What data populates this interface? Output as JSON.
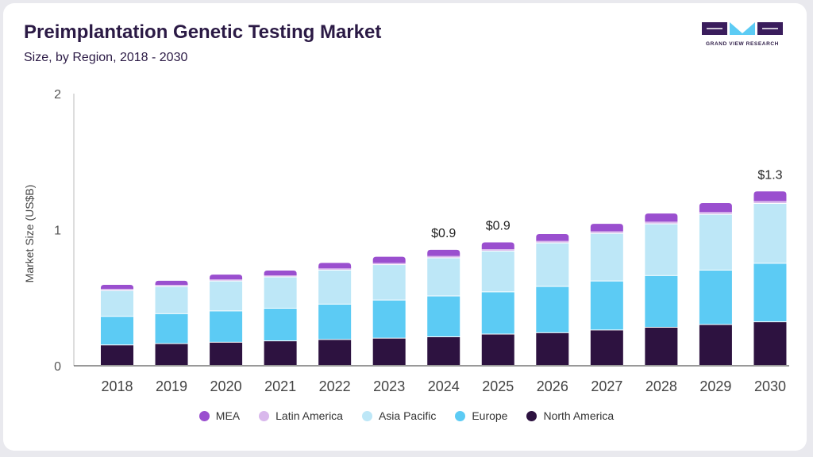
{
  "header": {
    "title": "Preimplantation Genetic Testing Market",
    "subtitle": "Size, by Region, 2018 - 2030"
  },
  "logo": {
    "text": "GRAND VIEW RESEARCH"
  },
  "chart_data": {
    "type": "bar",
    "stacked": true,
    "ylabel": "Market Size (US$B)",
    "xlabel": "",
    "ylim": [
      0,
      2
    ],
    "yticks": [
      "0",
      "1",
      "2"
    ],
    "categories": [
      "2018",
      "2019",
      "2020",
      "2021",
      "2022",
      "2023",
      "2024",
      "2025",
      "2026",
      "2027",
      "2028",
      "2029",
      "2030"
    ],
    "series": [
      {
        "name": "North America",
        "color": "#2d1240",
        "values": [
          0.15,
          0.16,
          0.17,
          0.18,
          0.19,
          0.2,
          0.21,
          0.23,
          0.24,
          0.26,
          0.28,
          0.3,
          0.32
        ]
      },
      {
        "name": "Europe",
        "color": "#5ccbf4",
        "values": [
          0.21,
          0.22,
          0.23,
          0.24,
          0.26,
          0.28,
          0.3,
          0.31,
          0.34,
          0.36,
          0.38,
          0.4,
          0.43
        ]
      },
      {
        "name": "Asia Pacific",
        "color": "#bde7f7",
        "values": [
          0.19,
          0.2,
          0.22,
          0.23,
          0.25,
          0.26,
          0.28,
          0.3,
          0.32,
          0.35,
          0.38,
          0.41,
          0.44
        ]
      },
      {
        "name": "Latin America",
        "color": "#d9b8ec",
        "values": [
          0.015,
          0.015,
          0.015,
          0.015,
          0.016,
          0.016,
          0.017,
          0.017,
          0.018,
          0.018,
          0.019,
          0.02,
          0.021
        ]
      },
      {
        "name": "MEA",
        "color": "#9a4fcf",
        "values": [
          0.03,
          0.03,
          0.035,
          0.035,
          0.04,
          0.045,
          0.045,
          0.05,
          0.05,
          0.055,
          0.06,
          0.065,
          0.07
        ]
      }
    ],
    "annotations": [
      {
        "category": "2024",
        "label": "$0.9"
      },
      {
        "category": "2025",
        "label": "$0.9"
      },
      {
        "category": "2030",
        "label": "$1.3"
      }
    ],
    "legend": {
      "position": "bottom",
      "order": [
        "MEA",
        "Latin America",
        "Asia Pacific",
        "Europe",
        "North America"
      ]
    }
  }
}
